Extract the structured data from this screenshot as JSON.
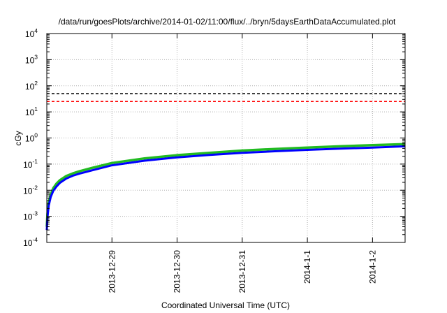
{
  "chart_data": {
    "type": "line",
    "title": "/data/run/goesPlots/archive/2014-01-02/11:00/flux/../bryn/5daysEarthDataAccumulated.plot",
    "xlabel": "Coordinated Universal Time (UTC)",
    "ylabel": "cGy",
    "yscale": "log",
    "ylim": [
      0.0001,
      10000
    ],
    "xlim": [
      0,
      5.5
    ],
    "grid": true,
    "yticks": [
      {
        "base": "10",
        "exp": "-4"
      },
      {
        "base": "10",
        "exp": "-3"
      },
      {
        "base": "10",
        "exp": "-2"
      },
      {
        "base": "10",
        "exp": "-1"
      },
      {
        "base": "10",
        "exp": "0"
      },
      {
        "base": "10",
        "exp": "1"
      },
      {
        "base": "10",
        "exp": "2"
      },
      {
        "base": "10",
        "exp": "3"
      },
      {
        "base": "10",
        "exp": "4"
      }
    ],
    "xticks": [
      {
        "label": "2013-12-29",
        "x": 1
      },
      {
        "label": "2013-12-30",
        "x": 2
      },
      {
        "label": "2013-12-31",
        "x": 3
      },
      {
        "label": "2014-1-1",
        "x": 4
      },
      {
        "label": "2014-1-2",
        "x": 5
      }
    ],
    "reference_lines": [
      {
        "y": 50,
        "color": "#000000",
        "style": "dashed"
      },
      {
        "y": 25,
        "color": "#ff0000",
        "style": "dashed"
      }
    ],
    "series": [
      {
        "color": "#22bb22",
        "x": [
          0,
          0.01,
          0.03,
          0.06,
          0.1,
          0.15,
          0.2,
          0.3,
          0.4,
          0.5,
          0.7,
          1.0,
          1.5,
          2.0,
          2.5,
          3.0,
          3.5,
          4.0,
          4.5,
          5.0,
          5.5
        ],
        "y": [
          0.0004,
          0.0012,
          0.0035,
          0.007,
          0.012,
          0.018,
          0.024,
          0.035,
          0.044,
          0.053,
          0.072,
          0.11,
          0.165,
          0.22,
          0.27,
          0.33,
          0.38,
          0.43,
          0.48,
          0.53,
          0.58
        ]
      },
      {
        "color": "#0000ff",
        "x": [
          0,
          0.01,
          0.03,
          0.06,
          0.1,
          0.15,
          0.2,
          0.3,
          0.4,
          0.5,
          0.7,
          1.0,
          1.5,
          2.0,
          2.5,
          3.0,
          3.5,
          4.0,
          4.5,
          5.0,
          5.5
        ],
        "y": [
          0.0003,
          0.0009,
          0.0026,
          0.0055,
          0.0095,
          0.014,
          0.019,
          0.028,
          0.036,
          0.043,
          0.058,
          0.09,
          0.135,
          0.18,
          0.225,
          0.27,
          0.31,
          0.35,
          0.39,
          0.43,
          0.48
        ]
      }
    ]
  }
}
